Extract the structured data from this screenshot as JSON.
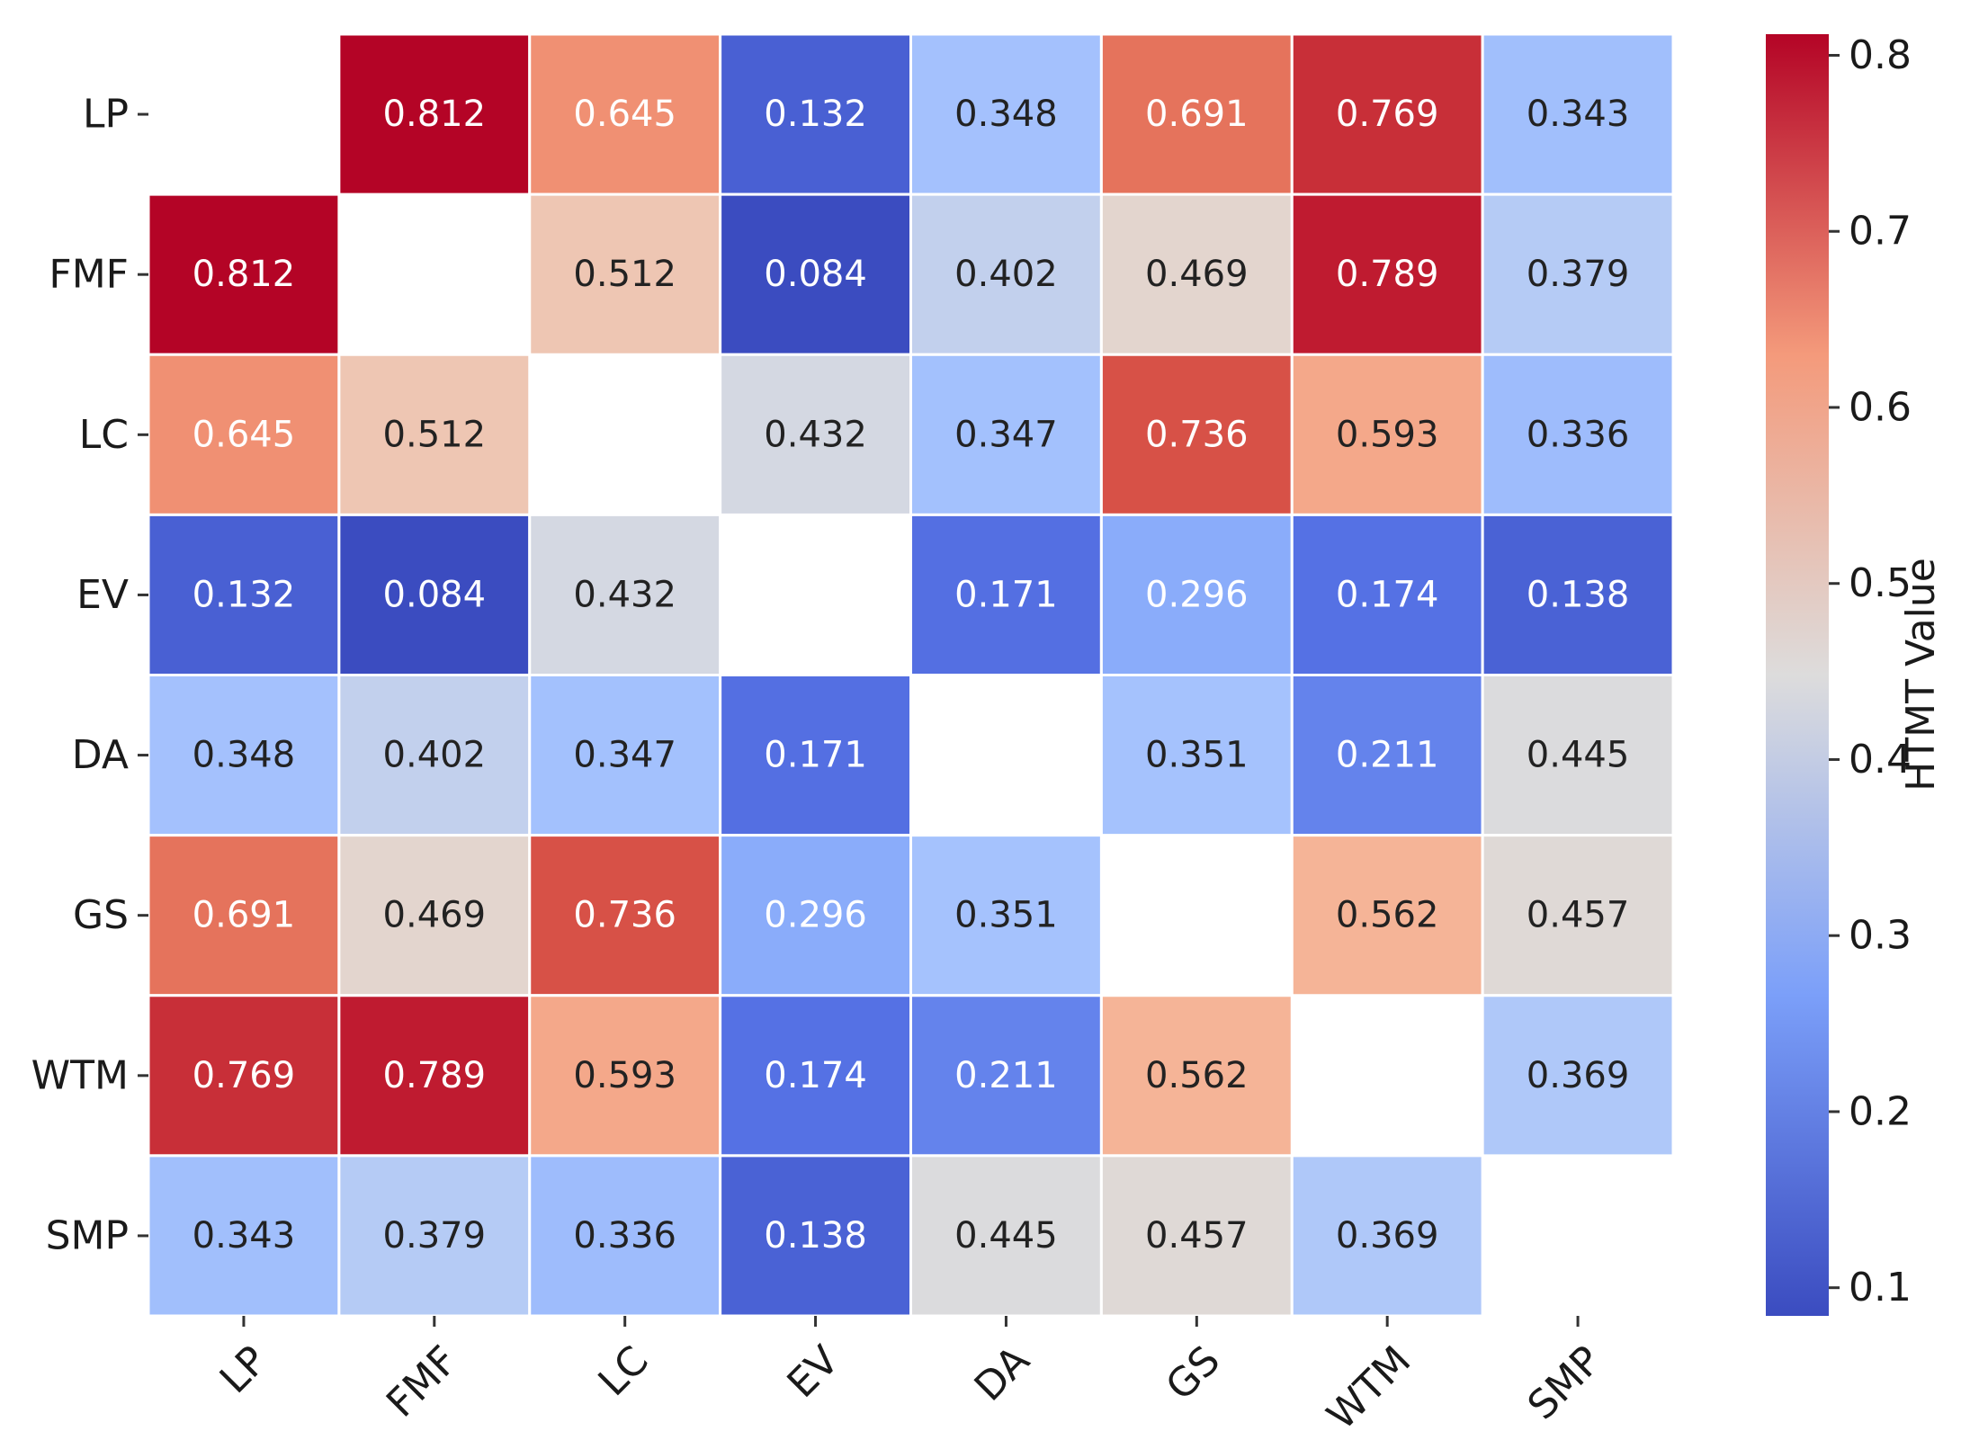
{
  "chart_data": {
    "type": "heatmap",
    "title": "",
    "xlabel": "",
    "ylabel": "",
    "row_labels": [
      "LP",
      "FMF",
      "LC",
      "EV",
      "DA",
      "GS",
      "WTM",
      "SMP"
    ],
    "col_labels": [
      "LP",
      "FMF",
      "LC",
      "EV",
      "DA",
      "GS",
      "WTM",
      "SMP"
    ],
    "values": [
      [
        null,
        0.812,
        0.645,
        0.132,
        0.348,
        0.691,
        0.769,
        0.343
      ],
      [
        0.812,
        null,
        0.512,
        0.084,
        0.402,
        0.469,
        0.789,
        0.379
      ],
      [
        0.645,
        0.512,
        null,
        0.432,
        0.347,
        0.736,
        0.593,
        0.336
      ],
      [
        0.132,
        0.084,
        0.432,
        null,
        0.171,
        0.296,
        0.174,
        0.138
      ],
      [
        0.348,
        0.402,
        0.347,
        0.171,
        null,
        0.351,
        0.211,
        0.445
      ],
      [
        0.691,
        0.469,
        0.736,
        0.296,
        0.351,
        null,
        0.562,
        0.457
      ],
      [
        0.769,
        0.789,
        0.593,
        0.174,
        0.211,
        0.562,
        null,
        0.369
      ],
      [
        0.343,
        0.379,
        0.336,
        0.138,
        0.445,
        0.457,
        0.369,
        null
      ]
    ],
    "colormap": "coolwarm",
    "vmin": 0.084,
    "vmax": 0.812,
    "colorbar": {
      "label": "HTMT Value",
      "ticks": [
        0.1,
        0.2,
        0.3,
        0.4,
        0.5,
        0.6,
        0.7,
        0.8
      ]
    }
  }
}
